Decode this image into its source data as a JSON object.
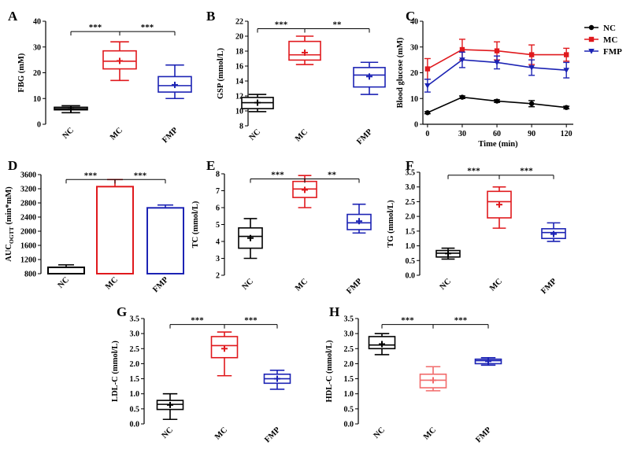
{
  "colors": {
    "NC": "#000000",
    "MC": "#e0191d",
    "FMP": "#1c23b4",
    "MC_light": "#f26b6b"
  },
  "legend": {
    "NC": "NC",
    "MC": "MC",
    "FMP": "FMP"
  },
  "chart_data": [
    {
      "id": "A",
      "label": "A",
      "type": "box",
      "ylabel": "FBG (mM)",
      "ylim": [
        0,
        40
      ],
      "yticks": [
        0,
        10,
        20,
        30,
        40
      ],
      "categories": [
        "NC",
        "MC",
        "FMP"
      ],
      "boxes": [
        {
          "group": "NC",
          "min": 4.5,
          "q1": 5.6,
          "median": 6.0,
          "q3": 6.6,
          "max": 7.2,
          "mean": 6.0
        },
        {
          "group": "MC",
          "min": 17,
          "q1": 21.5,
          "median": 24.5,
          "q3": 28.5,
          "max": 32,
          "mean": 24.6
        },
        {
          "group": "FMP",
          "min": 10,
          "q1": 12.5,
          "median": 15,
          "q3": 18.5,
          "max": 23,
          "mean": 15.3
        }
      ],
      "sig": [
        {
          "from": "NC",
          "to": "MC",
          "text": "***"
        },
        {
          "from": "MC",
          "to": "FMP",
          "text": "***"
        }
      ],
      "sig_y": 36
    },
    {
      "id": "B",
      "label": "B",
      "type": "box",
      "ylabel": "GSP (mmol/L)",
      "ylim": [
        8,
        22
      ],
      "yticks": [
        8,
        10,
        12,
        14,
        16,
        18,
        20,
        22
      ],
      "categories": [
        "NC",
        "MC",
        "FMP"
      ],
      "boxes": [
        {
          "group": "NC",
          "min": 9.9,
          "q1": 10.3,
          "median": 11.1,
          "q3": 11.8,
          "max": 12.2,
          "mean": 11.1
        },
        {
          "group": "MC",
          "min": 16.2,
          "q1": 16.8,
          "median": 17.5,
          "q3": 19.3,
          "max": 20,
          "mean": 17.8
        },
        {
          "group": "FMP",
          "min": 12.2,
          "q1": 13.2,
          "median": 14.8,
          "q3": 15.8,
          "max": 16.5,
          "mean": 14.6
        }
      ],
      "sig": [
        {
          "from": "NC",
          "to": "MC",
          "text": "***"
        },
        {
          "from": "MC",
          "to": "FMP",
          "text": "**"
        }
      ],
      "sig_y": 21
    },
    {
      "id": "C",
      "label": "C",
      "type": "line",
      "xlabel": "Time (min)",
      "ylabel": "Blood glucose (mM)",
      "x": [
        0,
        30,
        60,
        90,
        120
      ],
      "xticks": [
        0,
        30,
        60,
        90,
        120
      ],
      "xlim": [
        -4,
        126
      ],
      "ylim": [
        0,
        40
      ],
      "yticks": [
        0,
        10,
        20,
        30,
        40
      ],
      "series": [
        {
          "name": "NC",
          "values": [
            4.5,
            10.5,
            9,
            8,
            6.5
          ],
          "errors": [
            0.4,
            0.5,
            0.5,
            1.2,
            0.5
          ]
        },
        {
          "name": "MC",
          "values": [
            21.5,
            29,
            28.5,
            27,
            27
          ],
          "errors": [
            4,
            4,
            3.5,
            3.8,
            2.5
          ]
        },
        {
          "name": "FMP",
          "values": [
            15,
            25,
            24,
            22,
            21
          ],
          "errors": [
            2.5,
            3,
            2.5,
            3,
            3
          ]
        }
      ]
    },
    {
      "id": "D",
      "label": "D",
      "type": "bar",
      "ylabel": "AUC(OGTT) (min*mM)",
      "ylabel_main": "AUC",
      "ylabel_sub": "OGTT",
      "ylabel_tail": " (min*mM)",
      "ylim": [
        800,
        3600
      ],
      "yticks": [
        800,
        1200,
        1600,
        2000,
        2400,
        2800,
        3200,
        3600
      ],
      "categories": [
        "NC",
        "MC",
        "FMP"
      ],
      "values": [
        980,
        3260,
        2660
      ],
      "errors": [
        70,
        200,
        80
      ],
      "sig": [
        {
          "from": "NC",
          "to": "MC",
          "text": "***"
        },
        {
          "from": "MC",
          "to": "FMP",
          "text": "***"
        }
      ],
      "sig_y": 3460
    },
    {
      "id": "E",
      "label": "E",
      "type": "box",
      "ylabel": "TC (mmol/L)",
      "ylim": [
        2,
        8
      ],
      "yticks": [
        2,
        3,
        4,
        5,
        6,
        7,
        8
      ],
      "categories": [
        "NC",
        "MC",
        "FMP"
      ],
      "boxes": [
        {
          "group": "NC",
          "min": 3.0,
          "q1": 3.6,
          "median": 4.3,
          "q3": 4.8,
          "max": 5.35,
          "mean": 4.2
        },
        {
          "group": "MC",
          "min": 6.0,
          "q1": 6.6,
          "median": 7.1,
          "q3": 7.55,
          "max": 7.9,
          "mean": 7.05
        },
        {
          "group": "FMP",
          "min": 4.5,
          "q1": 4.7,
          "median": 5.1,
          "q3": 5.6,
          "max": 6.2,
          "mean": 5.2
        }
      ],
      "sig": [
        {
          "from": "NC",
          "to": "MC",
          "text": "***"
        },
        {
          "from": "MC",
          "to": "FMP",
          "text": "**"
        }
      ],
      "sig_y": 7.7
    },
    {
      "id": "F",
      "label": "F",
      "type": "box",
      "ylabel": "TG (mmol/L)",
      "ylim": [
        0,
        3.5
      ],
      "yticks": [
        0.0,
        0.5,
        1.0,
        1.5,
        2.0,
        2.5,
        3.0,
        3.5
      ],
      "categories": [
        "NC",
        "MC",
        "FMP"
      ],
      "boxes": [
        {
          "group": "NC",
          "min": 0.55,
          "q1": 0.62,
          "median": 0.75,
          "q3": 0.84,
          "max": 0.92,
          "mean": 0.74
        },
        {
          "group": "MC",
          "min": 1.6,
          "q1": 1.95,
          "median": 2.5,
          "q3": 2.85,
          "max": 3.0,
          "mean": 2.4
        },
        {
          "group": "FMP",
          "min": 1.15,
          "q1": 1.25,
          "median": 1.45,
          "q3": 1.58,
          "max": 1.78,
          "mean": 1.4
        }
      ],
      "sig": [
        {
          "from": "NC",
          "to": "MC",
          "text": "***"
        },
        {
          "from": "MC",
          "to": "FMP",
          "text": "***"
        }
      ],
      "sig_y": 3.4
    },
    {
      "id": "G",
      "label": "G",
      "type": "box",
      "ylabel": "LDL-C (mmol/L)",
      "ylim": [
        0,
        3.5
      ],
      "yticks": [
        0.0,
        0.5,
        1.0,
        1.5,
        2.0,
        2.5,
        3.0,
        3.5
      ],
      "categories": [
        "NC",
        "MC",
        "FMP"
      ],
      "boxes": [
        {
          "group": "NC",
          "min": 0.15,
          "q1": 0.48,
          "median": 0.65,
          "q3": 0.78,
          "max": 1.0,
          "mean": 0.63
        },
        {
          "group": "MC",
          "min": 1.6,
          "q1": 2.2,
          "median": 2.6,
          "q3": 2.9,
          "max": 3.05,
          "mean": 2.5
        },
        {
          "group": "FMP",
          "min": 1.15,
          "q1": 1.35,
          "median": 1.5,
          "q3": 1.65,
          "max": 1.78,
          "mean": 1.5
        }
      ],
      "sig": [
        {
          "from": "NC",
          "to": "MC",
          "text": "***"
        },
        {
          "from": "MC",
          "to": "FMP",
          "text": "***"
        }
      ],
      "sig_y": 3.3
    },
    {
      "id": "H",
      "label": "H",
      "type": "box",
      "ylabel": "HDL-C (mmol/L)",
      "ylim": [
        0,
        3.5
      ],
      "yticks": [
        0.0,
        0.5,
        1.0,
        1.5,
        2.0,
        2.5,
        3.0,
        3.5
      ],
      "categories": [
        "NC",
        "MC",
        "FMP"
      ],
      "boxes": [
        {
          "group": "NC",
          "min": 2.3,
          "q1": 2.5,
          "median": 2.62,
          "q3": 2.9,
          "max": 3.0,
          "mean": 2.65
        },
        {
          "group": "MC",
          "min": 1.1,
          "q1": 1.2,
          "median": 1.45,
          "q3": 1.65,
          "max": 1.9,
          "mean": 1.45
        },
        {
          "group": "FMP",
          "min": 1.95,
          "q1": 2.0,
          "median": 2.1,
          "q3": 2.15,
          "max": 2.2,
          "mean": 2.08
        }
      ],
      "sig": [
        {
          "from": "NC",
          "to": "MC",
          "text": "***"
        },
        {
          "from": "MC",
          "to": "FMP",
          "text": "***"
        }
      ],
      "sig_y": 3.3
    }
  ]
}
